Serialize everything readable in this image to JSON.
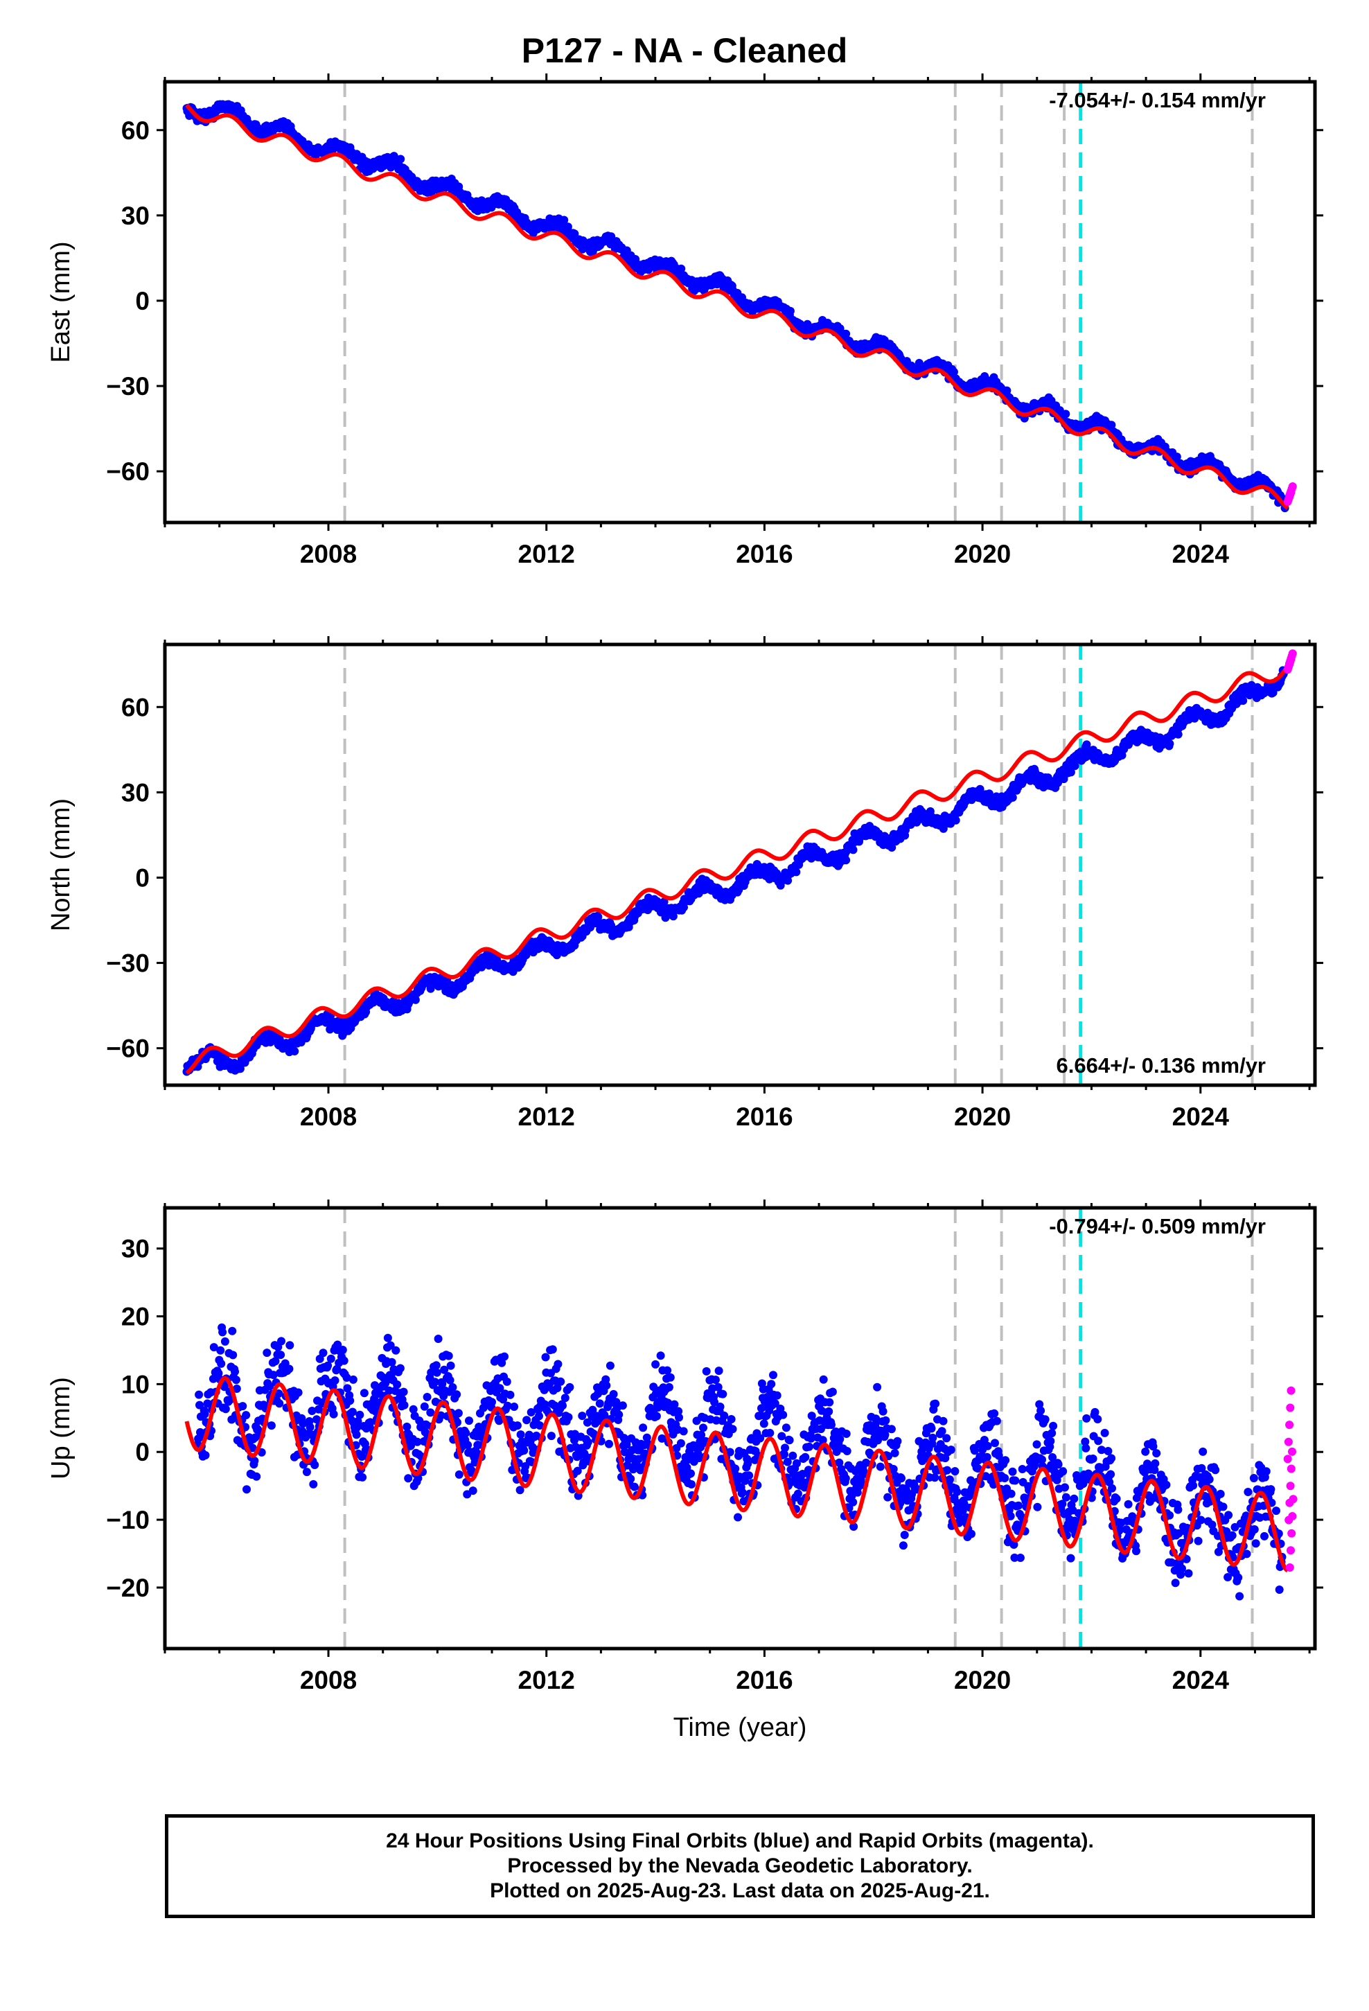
{
  "title": "P127  - NA - Cleaned",
  "xlabel": "Time (year)",
  "caption": {
    "line1": "24 Hour Positions Using Final Orbits (blue) and Rapid Orbits (magenta).",
    "line2": "Processed by the Nevada Geodetic Laboratory.",
    "line3": "Plotted on 2025-Aug-23. Last data on 2025-Aug-21."
  },
  "colors": {
    "final_orbits": "#0000ff",
    "rapid_orbits": "#ff00ff",
    "model": "#ff0000",
    "equipment_change": "#bfbfbf",
    "earthquake": "#00e5e5"
  },
  "chart_data": [
    {
      "type": "scatter",
      "ylabel": "East (mm)",
      "xlim": [
        2005.0,
        2026.1
      ],
      "ylim": [
        -78,
        77
      ],
      "x_ticks": [
        2008,
        2012,
        2016,
        2020,
        2024
      ],
      "y_ticks": [
        60,
        30,
        0,
        -30,
        -60
      ],
      "y_tick_labels": [
        "60",
        "30",
        "0",
        "−30",
        "−60"
      ],
      "rate": "-7.054+/- 0.154 mm/yr",
      "rate_position": "top-right",
      "grid": false,
      "equipment_change_epochs": [
        2008.3,
        2019.5,
        2020.35,
        2021.5,
        2024.95
      ],
      "earthquake_epochs": [
        2021.8
      ],
      "series": [
        {
          "role": "final_orbits",
          "x": [
            2005.4,
            2006.0,
            2007.0,
            2008.0,
            2009.0,
            2010.0,
            2011.0,
            2012.0,
            2013.0,
            2014.0,
            2015.0,
            2016.0,
            2017.0,
            2018.0,
            2019.0,
            2020.0,
            2021.0,
            2022.0,
            2023.0,
            2024.0,
            2025.0,
            2025.55
          ],
          "y": [
            67,
            67,
            60,
            53,
            48,
            40,
            34,
            26,
            20,
            12,
            6,
            -2,
            -10,
            -16,
            -24,
            -30,
            -38,
            -44,
            -52,
            -58,
            -64,
            -71
          ]
        },
        {
          "role": "rapid_orbits",
          "x": [
            2025.6,
            2025.63
          ],
          "y": [
            -69,
            -67
          ]
        },
        {
          "role": "model",
          "x": [
            2005.4,
            2025.6
          ],
          "y": [
            68,
            -71
          ]
        }
      ]
    },
    {
      "type": "scatter",
      "ylabel": "North (mm)",
      "xlim": [
        2005.0,
        2026.1
      ],
      "ylim": [
        -73,
        82
      ],
      "x_ticks": [
        2008,
        2012,
        2016,
        2020,
        2024
      ],
      "y_ticks": [
        60,
        30,
        0,
        -30,
        -60
      ],
      "y_tick_labels": [
        "60",
        "30",
        "0",
        "−30",
        "−60"
      ],
      "rate": "6.664+/- 0.136 mm/yr",
      "rate_position": "bottom-right",
      "grid": false,
      "equipment_change_epochs": [
        2008.3,
        2019.5,
        2020.35,
        2021.5,
        2024.95
      ],
      "earthquake_epochs": [
        2021.8
      ],
      "series": [
        {
          "role": "final_orbits",
          "x": [
            2005.4,
            2006.0,
            2007.0,
            2008.0,
            2009.0,
            2010.0,
            2011.0,
            2012.0,
            2013.0,
            2014.0,
            2015.0,
            2016.0,
            2017.0,
            2018.0,
            2019.0,
            2020.0,
            2021.0,
            2022.0,
            2023.0,
            2024.0,
            2025.0,
            2025.55
          ],
          "y": [
            -64,
            -65,
            -58,
            -52,
            -45,
            -38,
            -31,
            -25,
            -18,
            -11,
            -5,
            1,
            7,
            14,
            20,
            27,
            34,
            42,
            48,
            56,
            64,
            73
          ]
        },
        {
          "role": "rapid_orbits",
          "x": [
            2025.6,
            2025.63
          ],
          "y": [
            75,
            77
          ]
        },
        {
          "role": "model",
          "x": [
            2005.4,
            2025.6
          ],
          "y": [
            -66,
            74
          ]
        }
      ]
    },
    {
      "type": "scatter",
      "ylabel": "Up (mm)",
      "xlim": [
        2005.0,
        2026.1
      ],
      "ylim": [
        -29,
        36
      ],
      "x_ticks": [
        2008,
        2012,
        2016,
        2020,
        2024
      ],
      "y_ticks": [
        30,
        20,
        10,
        0,
        -10,
        -20
      ],
      "y_tick_labels": [
        "30",
        "20",
        "10",
        "0",
        "−10",
        "−20"
      ],
      "rate": "-0.794+/- 0.509 mm/yr",
      "rate_position": "top-right",
      "grid": false,
      "equipment_change_epochs": [
        2008.3,
        2019.5,
        2020.35,
        2021.5,
        2024.95
      ],
      "earthquake_epochs": [
        2021.8
      ],
      "series": [
        {
          "role": "final_orbits",
          "x": [
            2005.6,
            2006.5,
            2007.5,
            2008.5,
            2009.5,
            2010.5,
            2011.5,
            2012.5,
            2013.5,
            2014.5,
            2015.5,
            2016.5,
            2017.5,
            2018.5,
            2019.5,
            2020.5,
            2021.5,
            2022.5,
            2023.5,
            2024.5,
            2025.5
          ],
          "y": [
            8,
            6,
            6,
            7,
            6,
            5,
            4,
            4,
            3,
            3,
            1,
            1,
            -1,
            -2,
            -4,
            -4,
            -4,
            -7,
            -9,
            -10,
            -12
          ]
        },
        {
          "role": "rapid_orbits",
          "x": [
            2025.6,
            2025.62,
            2025.64
          ],
          "y": [
            4,
            -5,
            -12
          ]
        },
        {
          "role": "model",
          "x": [
            2005.4,
            2025.6
          ],
          "y": [
            6,
            -12
          ]
        }
      ]
    }
  ]
}
